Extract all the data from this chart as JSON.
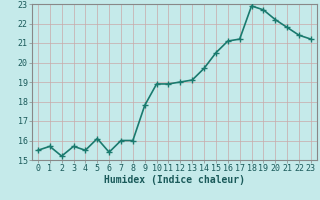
{
  "x": [
    0,
    1,
    2,
    3,
    4,
    5,
    6,
    7,
    8,
    9,
    10,
    11,
    12,
    13,
    14,
    15,
    16,
    17,
    18,
    19,
    20,
    21,
    22,
    23
  ],
  "y": [
    15.5,
    15.7,
    15.2,
    15.7,
    15.5,
    16.1,
    15.4,
    16.0,
    16.0,
    17.8,
    18.9,
    18.9,
    19.0,
    19.1,
    19.7,
    20.5,
    21.1,
    21.2,
    22.9,
    22.7,
    22.2,
    21.8,
    21.4,
    21.2
  ],
  "line_color": "#1a7a6e",
  "marker_color": "#1a7a6e",
  "bg_color": "#c5eaea",
  "grid_color": "#b8d8d8",
  "grid_color2": "#d4b8b8",
  "xlabel": "Humidex (Indice chaleur)",
  "ylim": [
    15,
    23
  ],
  "xlim": [
    -0.5,
    23.5
  ],
  "yticks": [
    15,
    16,
    17,
    18,
    19,
    20,
    21,
    22,
    23
  ],
  "xticks": [
    0,
    1,
    2,
    3,
    4,
    5,
    6,
    7,
    8,
    9,
    10,
    11,
    12,
    13,
    14,
    15,
    16,
    17,
    18,
    19,
    20,
    21,
    22,
    23
  ],
  "xlabel_fontsize": 7,
  "tick_fontsize": 6,
  "line_width": 1.2,
  "marker_size": 2.5,
  "text_color": "#1a5a5a",
  "spine_color": "#888888"
}
